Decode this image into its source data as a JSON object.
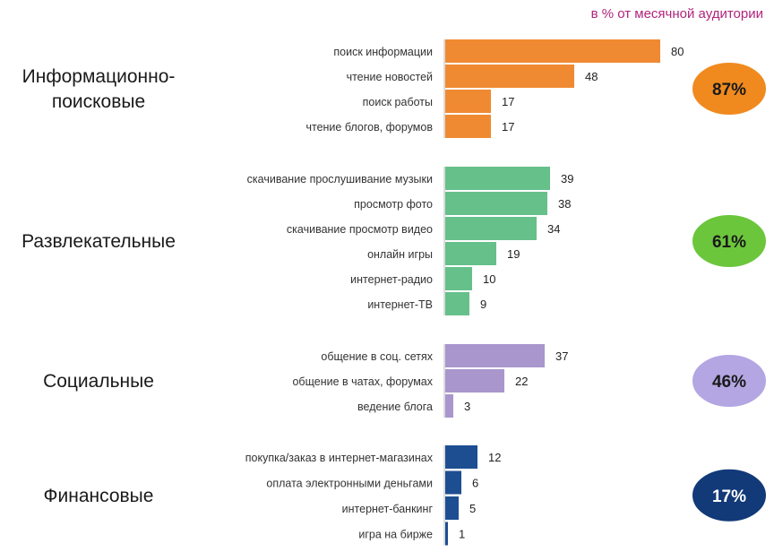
{
  "header": {
    "unit_note": "в %  от месячной аудитории"
  },
  "chart_data": {
    "type": "bar",
    "orientation": "horizontal",
    "xlim": [
      0,
      80
    ],
    "groups": [
      {
        "name": "Информационно-поисковые",
        "lines": [
          "Информационно-",
          "поисковые"
        ],
        "total": "87%",
        "color": "#f08a32",
        "badge_color": "#f08a1e",
        "badge_text_color": "#1a1a1a",
        "items": [
          {
            "label": "поиск информации",
            "value": 80
          },
          {
            "label": "чтение новостей",
            "value": 48
          },
          {
            "label": "поиск работы",
            "value": 17
          },
          {
            "label": "чтение блогов, форумов",
            "value": 17
          }
        ]
      },
      {
        "name": "Развлекательные",
        "lines": [
          "Развлекательные"
        ],
        "total": "61%",
        "color": "#66c08a",
        "badge_color": "#6cc63c",
        "badge_text_color": "#1a1a1a",
        "items": [
          {
            "label": "скачивание прослушивание музыки",
            "value": 39
          },
          {
            "label": "просмотр фото",
            "value": 38
          },
          {
            "label": "скачивание просмотр видео",
            "value": 34
          },
          {
            "label": "онлайн игры",
            "value": 19
          },
          {
            "label": "интернет-радио",
            "value": 10
          },
          {
            "label": "интернет-ТВ",
            "value": 9
          }
        ]
      },
      {
        "name": "Социальные",
        "lines": [
          "Социальные"
        ],
        "total": "46%",
        "color": "#a996cc",
        "badge_color": "#b3a6e2",
        "badge_text_color": "#1a1a1a",
        "items": [
          {
            "label": "общение в соц. сетях",
            "value": 37
          },
          {
            "label": "общение в чатах, форумах",
            "value": 22
          },
          {
            "label": "ведение блога",
            "value": 3
          }
        ]
      },
      {
        "name": "Финансовые",
        "lines": [
          "Финансовые"
        ],
        "total": "17%",
        "color": "#1d4e91",
        "badge_color": "#123a78",
        "badge_text_color": "#ffffff",
        "items": [
          {
            "label": "покупка/заказ в интернет-магазинах",
            "value": 12
          },
          {
            "label": "оплата электронными деньгами",
            "value": 6
          },
          {
            "label": "интернет-банкинг",
            "value": 5
          },
          {
            "label": "игра на бирже",
            "value": 1
          }
        ]
      }
    ]
  }
}
